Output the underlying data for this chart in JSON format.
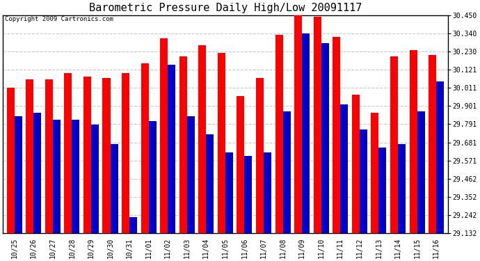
{
  "title": "Barometric Pressure Daily High/Low 20091117",
  "copyright": "Copyright 2009 Cartronics.com",
  "labels": [
    "10/25",
    "10/26",
    "10/27",
    "10/28",
    "10/29",
    "10/30",
    "10/31",
    "11/01",
    "11/02",
    "11/03",
    "11/04",
    "11/05",
    "11/06",
    "11/07",
    "11/08",
    "11/09",
    "11/10",
    "11/11",
    "11/12",
    "11/13",
    "11/14",
    "11/15",
    "11/16"
  ],
  "highs": [
    30.01,
    30.06,
    30.06,
    30.1,
    30.08,
    30.07,
    30.1,
    30.16,
    30.31,
    30.2,
    30.27,
    30.22,
    29.96,
    30.07,
    30.33,
    30.45,
    30.44,
    30.32,
    29.97,
    29.86,
    30.2,
    30.24,
    30.21
  ],
  "lows": [
    29.84,
    29.86,
    29.82,
    29.82,
    29.79,
    29.67,
    29.23,
    29.81,
    30.15,
    29.84,
    29.73,
    29.62,
    29.6,
    29.62,
    29.87,
    30.34,
    30.28,
    29.91,
    29.76,
    29.65,
    29.67,
    29.87,
    30.05
  ],
  "high_color": "#ff0000",
  "low_color": "#0000cc",
  "bg_color": "#ffffff",
  "grid_color": "#c8c8c8",
  "ymin": 29.132,
  "ymax": 30.45,
  "yticks": [
    29.132,
    29.242,
    29.352,
    29.462,
    29.571,
    29.681,
    29.791,
    29.901,
    30.011,
    30.121,
    30.23,
    30.34,
    30.45
  ],
  "ytick_labels": [
    "29.132",
    "29.242",
    "29.352",
    "29.462",
    "29.571",
    "29.681",
    "29.791",
    "29.901",
    "30.011",
    "30.121",
    "30.230",
    "30.340",
    "30.450"
  ],
  "bar_width": 0.4,
  "title_fontsize": 11,
  "tick_fontsize": 7,
  "copyright_fontsize": 6.5
}
